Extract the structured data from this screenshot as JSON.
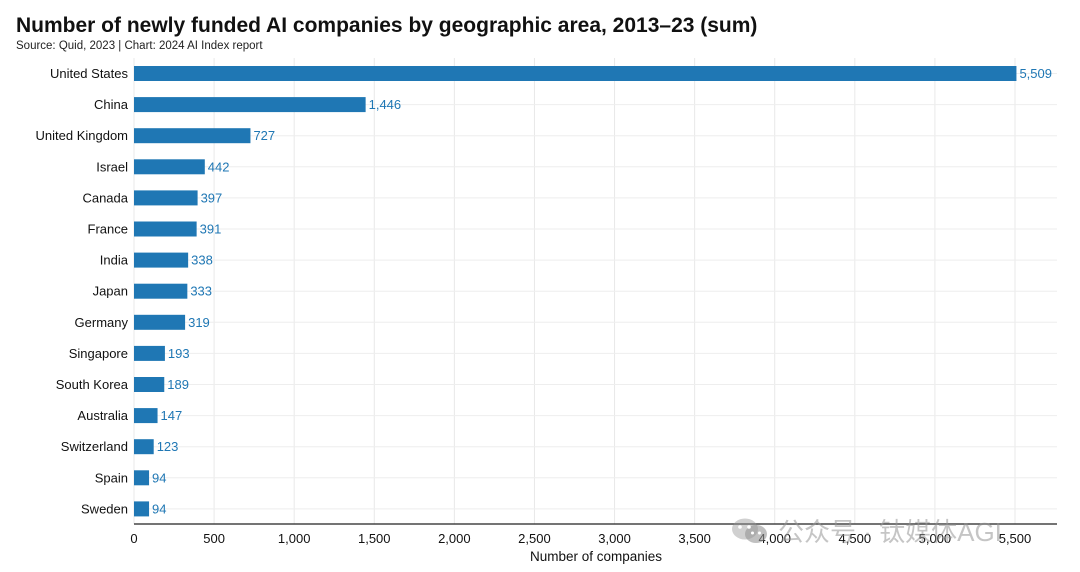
{
  "chart_data": {
    "type": "bar",
    "orientation": "horizontal",
    "title": "Number of newly funded AI companies by geographic area, 2013–23 (sum)",
    "subtitle": "Source: Quid, 2023 | Chart: 2024 AI Index report",
    "categories": [
      "United States",
      "China",
      "United Kingdom",
      "Israel",
      "Canada",
      "France",
      "India",
      "Japan",
      "Germany",
      "Singapore",
      "South Korea",
      "Australia",
      "Switzerland",
      "Spain",
      "Sweden"
    ],
    "values": [
      5509,
      1446,
      727,
      442,
      397,
      391,
      338,
      333,
      319,
      193,
      189,
      147,
      123,
      94,
      94
    ],
    "value_labels": [
      "5,509",
      "1,446",
      "727",
      "442",
      "397",
      "391",
      "338",
      "333",
      "319",
      "193",
      "189",
      "147",
      "123",
      "94",
      "94"
    ],
    "xlabel": "Number of companies",
    "ylabel": "",
    "xlim": [
      0,
      5600
    ],
    "xticks": [
      0,
      500,
      1000,
      1500,
      2000,
      2500,
      3000,
      3500,
      4000,
      4500,
      5000,
      5500
    ],
    "xtick_labels": [
      "0",
      "500",
      "1,000",
      "1,500",
      "2,000",
      "2,500",
      "3,000",
      "3,500",
      "4,000",
      "4,500",
      "5,000",
      "5,500"
    ],
    "grid": true,
    "bar_color": "#1f77b4",
    "label_color": "#1f77b4"
  },
  "watermark": {
    "text": "公众号 · 钛媒体AGI",
    "icon": "wechat-icon"
  }
}
